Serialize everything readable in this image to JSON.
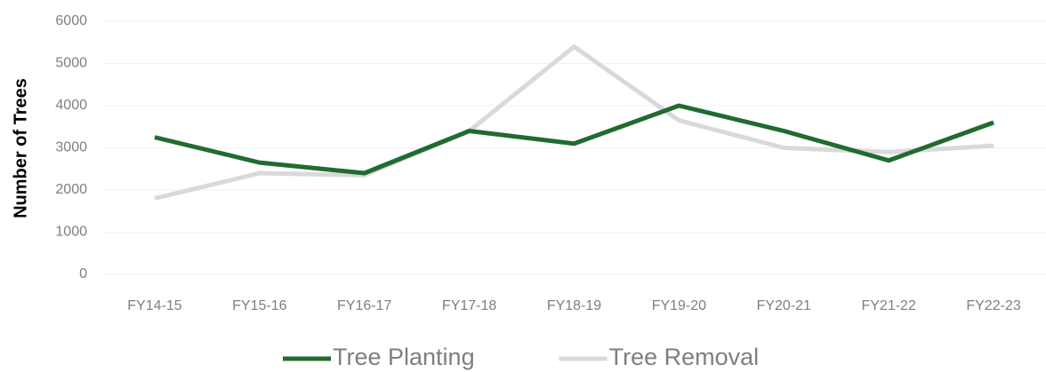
{
  "chart_data": {
    "type": "line",
    "y_label": "Number of Trees",
    "categories": [
      "FY14-15",
      "FY15-16",
      "FY16-17",
      "FY17-18",
      "FY18-19",
      "FY19-20",
      "FY20-21",
      "FY21-22",
      "FY22-23"
    ],
    "series": [
      {
        "name": "Tree Planting",
        "color": "#1f6b30",
        "values": [
          3250,
          2650,
          2400,
          3400,
          3100,
          4000,
          3400,
          2700,
          3600
        ]
      },
      {
        "name": "Tree Removal",
        "color": "#d9d9d9",
        "values": [
          1800,
          2400,
          2350,
          3400,
          5400,
          3650,
          3000,
          2900,
          3050
        ]
      }
    ],
    "ylim": [
      0,
      6000
    ],
    "yticks": [
      0,
      1000,
      2000,
      3000,
      4000,
      5000,
      6000
    ],
    "grid": true,
    "legend": "bottom"
  }
}
